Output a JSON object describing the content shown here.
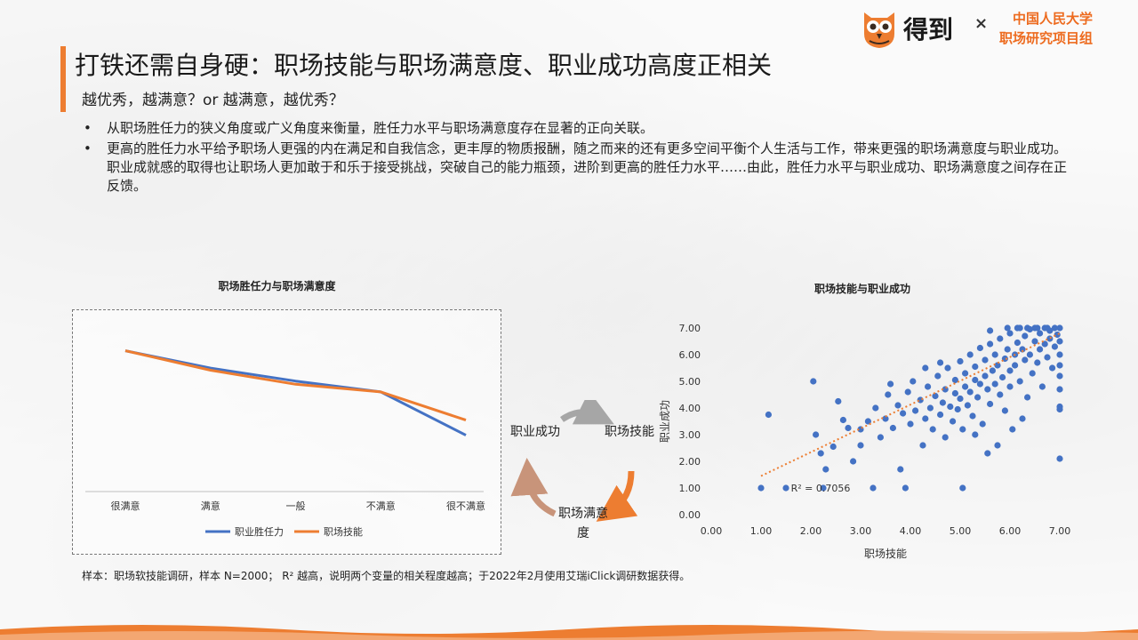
{
  "header": {
    "title": "打铁还需自身硬：职场技能与职场满意度、职业成功高度正相关",
    "subtitle": "越优秀，越满意？or 越满意，越优秀？"
  },
  "brand": {
    "name": "得到",
    "cross": "×",
    "org_line1": "中国人民大学",
    "org_line2": "职场研究项目组",
    "logo_icon": "owl-logo-icon",
    "accent_color": "#ed7d31"
  },
  "bullets": [
    "从职场胜任力的狭义角度或广义角度来衡量，胜任力水平与职场满意度存在显著的正向关联。",
    "更高的胜任力水平给予职场人更强的内在满足和自我信念，更丰厚的物质报酬，随之而来的还有更多空间平衡个人生活与工作，带来更强的职场满意度与职业成功。职业成就感的取得也让职场人更加敢于和乐于接受挑战，突破自己的能力瓶颈，进阶到更高的胜任力水平……由此，胜任力水平与职业成功、职场满意度之间存在正反馈。"
  ],
  "cycle": {
    "node_a": "职业成功",
    "node_b": "职场技能",
    "node_c": "职场满意度",
    "arrow_colors": [
      "#a6a6a6",
      "#ed7d31",
      "#c8947a"
    ]
  },
  "footnote": "样本：职场软技能调研，样本 N=2000； R² 越高，说明两个变量的相关程度越高；于2022年2月使用艾瑞iClick调研数据获得。",
  "chart_data": [
    {
      "type": "line",
      "title": "职场胜任力与职场满意度",
      "categories": [
        "很满意",
        "满意",
        "一般",
        "不满意",
        "很不满意"
      ],
      "series": [
        {
          "name": "职业胜任力",
          "color": "#4472c4",
          "values": [
            6.5,
            5.7,
            5.1,
            4.6,
            2.6
          ]
        },
        {
          "name": "职场技能",
          "color": "#ed7d31",
          "values": [
            6.5,
            5.6,
            4.95,
            4.6,
            3.3
          ]
        }
      ],
      "ylim": [
        0,
        8
      ],
      "grid": false,
      "legend": "bottom"
    },
    {
      "type": "scatter",
      "title": "职场技能与职业成功",
      "xlabel": "职场技能",
      "ylabel": "职业成功",
      "xlim": [
        0,
        7
      ],
      "ylim": [
        0,
        7
      ],
      "x_ticks": [
        "0.00",
        "1.00",
        "2.00",
        "3.00",
        "4.00",
        "5.00",
        "6.00",
        "7.00"
      ],
      "y_ticks": [
        "0.00",
        "1.00",
        "2.00",
        "3.00",
        "4.00",
        "5.00",
        "6.00",
        "7.00"
      ],
      "point_color": "#4472c4",
      "trend_color": "#ed7d31",
      "trendline": {
        "x": [
          1.0,
          7.0
        ],
        "y": [
          1.45,
          6.8
        ]
      },
      "annotation": "R² = 0.7056",
      "points": [
        {
          "x": 1.0,
          "y": 1.0
        },
        {
          "x": 1.5,
          "y": 1.0
        },
        {
          "x": 2.25,
          "y": 1.0
        },
        {
          "x": 3.25,
          "y": 1.0
        },
        {
          "x": 3.9,
          "y": 1.0
        },
        {
          "x": 5.05,
          "y": 1.0
        },
        {
          "x": 1.15,
          "y": 3.75
        },
        {
          "x": 2.05,
          "y": 5.0
        },
        {
          "x": 2.1,
          "y": 3.0
        },
        {
          "x": 2.2,
          "y": 2.3
        },
        {
          "x": 2.3,
          "y": 1.7
        },
        {
          "x": 2.45,
          "y": 2.55
        },
        {
          "x": 2.55,
          "y": 4.25
        },
        {
          "x": 2.65,
          "y": 3.55
        },
        {
          "x": 2.75,
          "y": 3.25
        },
        {
          "x": 2.85,
          "y": 2.0
        },
        {
          "x": 3.0,
          "y": 2.6
        },
        {
          "x": 3.0,
          "y": 3.2
        },
        {
          "x": 3.15,
          "y": 3.5
        },
        {
          "x": 3.3,
          "y": 4.0
        },
        {
          "x": 3.4,
          "y": 2.9
        },
        {
          "x": 3.5,
          "y": 3.6
        },
        {
          "x": 3.55,
          "y": 4.5
        },
        {
          "x": 3.65,
          "y": 3.25
        },
        {
          "x": 3.75,
          "y": 4.1
        },
        {
          "x": 3.8,
          "y": 1.7
        },
        {
          "x": 3.85,
          "y": 3.8
        },
        {
          "x": 3.95,
          "y": 4.6
        },
        {
          "x": 4.0,
          "y": 3.4
        },
        {
          "x": 4.05,
          "y": 5.0
        },
        {
          "x": 4.1,
          "y": 3.9
        },
        {
          "x": 4.2,
          "y": 4.3
        },
        {
          "x": 4.25,
          "y": 2.6
        },
        {
          "x": 4.3,
          "y": 3.6
        },
        {
          "x": 4.35,
          "y": 4.8
        },
        {
          "x": 4.4,
          "y": 4.0
        },
        {
          "x": 4.45,
          "y": 3.2
        },
        {
          "x": 4.5,
          "y": 4.45
        },
        {
          "x": 4.55,
          "y": 5.2
        },
        {
          "x": 4.6,
          "y": 3.75
        },
        {
          "x": 4.65,
          "y": 4.2
        },
        {
          "x": 4.7,
          "y": 2.9
        },
        {
          "x": 4.7,
          "y": 4.7
        },
        {
          "x": 4.75,
          "y": 5.5
        },
        {
          "x": 4.8,
          "y": 4.05
        },
        {
          "x": 4.85,
          "y": 3.5
        },
        {
          "x": 4.9,
          "y": 4.55
        },
        {
          "x": 4.9,
          "y": 5.05
        },
        {
          "x": 4.95,
          "y": 3.95
        },
        {
          "x": 5.0,
          "y": 4.35
        },
        {
          "x": 5.0,
          "y": 5.75
        },
        {
          "x": 5.05,
          "y": 3.2
        },
        {
          "x": 5.1,
          "y": 4.8
        },
        {
          "x": 5.1,
          "y": 5.3
        },
        {
          "x": 5.15,
          "y": 4.1
        },
        {
          "x": 5.2,
          "y": 4.6
        },
        {
          "x": 5.2,
          "y": 6.0
        },
        {
          "x": 5.25,
          "y": 3.7
        },
        {
          "x": 5.3,
          "y": 5.05
        },
        {
          "x": 5.3,
          "y": 5.55
        },
        {
          "x": 5.35,
          "y": 4.4
        },
        {
          "x": 5.4,
          "y": 4.9
        },
        {
          "x": 5.4,
          "y": 6.25
        },
        {
          "x": 5.45,
          "y": 3.4
        },
        {
          "x": 5.5,
          "y": 5.2
        },
        {
          "x": 5.5,
          "y": 5.8
        },
        {
          "x": 5.55,
          "y": 4.7
        },
        {
          "x": 5.6,
          "y": 4.15
        },
        {
          "x": 5.6,
          "y": 6.4
        },
        {
          "x": 5.65,
          "y": 5.4
        },
        {
          "x": 5.7,
          "y": 4.9
        },
        {
          "x": 5.7,
          "y": 6.0
        },
        {
          "x": 5.75,
          "y": 2.6
        },
        {
          "x": 5.75,
          "y": 5.6
        },
        {
          "x": 5.8,
          "y": 4.5
        },
        {
          "x": 5.8,
          "y": 6.6
        },
        {
          "x": 5.85,
          "y": 5.15
        },
        {
          "x": 5.9,
          "y": 5.85
        },
        {
          "x": 5.9,
          "y": 3.9
        },
        {
          "x": 5.95,
          "y": 6.2
        },
        {
          "x": 6.0,
          "y": 4.8
        },
        {
          "x": 6.0,
          "y": 5.4
        },
        {
          "x": 6.0,
          "y": 6.8
        },
        {
          "x": 6.05,
          "y": 3.2
        },
        {
          "x": 6.1,
          "y": 6.0
        },
        {
          "x": 6.1,
          "y": 5.6
        },
        {
          "x": 6.15,
          "y": 6.45
        },
        {
          "x": 6.2,
          "y": 5.0
        },
        {
          "x": 6.2,
          "y": 7.0
        },
        {
          "x": 6.25,
          "y": 6.2
        },
        {
          "x": 6.3,
          "y": 5.8
        },
        {
          "x": 6.3,
          "y": 6.7
        },
        {
          "x": 6.35,
          "y": 4.4
        },
        {
          "x": 6.4,
          "y": 6.95
        },
        {
          "x": 6.4,
          "y": 6.0
        },
        {
          "x": 6.45,
          "y": 5.3
        },
        {
          "x": 6.5,
          "y": 6.5
        },
        {
          "x": 6.5,
          "y": 7.0
        },
        {
          "x": 6.55,
          "y": 5.7
        },
        {
          "x": 6.6,
          "y": 6.8
        },
        {
          "x": 6.6,
          "y": 6.2
        },
        {
          "x": 6.65,
          "y": 4.8
        },
        {
          "x": 6.7,
          "y": 7.0
        },
        {
          "x": 6.7,
          "y": 6.4
        },
        {
          "x": 6.75,
          "y": 5.9
        },
        {
          "x": 6.8,
          "y": 6.9
        },
        {
          "x": 6.8,
          "y": 6.6
        },
        {
          "x": 6.85,
          "y": 5.5
        },
        {
          "x": 6.9,
          "y": 7.0
        },
        {
          "x": 6.9,
          "y": 6.3
        },
        {
          "x": 6.95,
          "y": 6.75
        },
        {
          "x": 7.0,
          "y": 7.0
        },
        {
          "x": 7.0,
          "y": 6.5
        },
        {
          "x": 7.0,
          "y": 6.0
        },
        {
          "x": 7.0,
          "y": 5.6
        },
        {
          "x": 7.0,
          "y": 5.2
        },
        {
          "x": 7.0,
          "y": 4.7
        },
        {
          "x": 7.0,
          "y": 4.05
        },
        {
          "x": 7.0,
          "y": 3.95
        },
        {
          "x": 7.0,
          "y": 2.1
        },
        {
          "x": 5.95,
          "y": 7.0
        },
        {
          "x": 6.15,
          "y": 7.0
        },
        {
          "x": 6.35,
          "y": 7.0
        },
        {
          "x": 6.55,
          "y": 7.0
        },
        {
          "x": 6.75,
          "y": 7.0
        },
        {
          "x": 5.6,
          "y": 6.9
        },
        {
          "x": 4.6,
          "y": 5.7
        },
        {
          "x": 4.3,
          "y": 5.5
        },
        {
          "x": 3.6,
          "y": 4.9
        },
        {
          "x": 5.3,
          "y": 3.0
        },
        {
          "x": 5.55,
          "y": 2.3
        },
        {
          "x": 6.25,
          "y": 3.6
        }
      ]
    }
  ]
}
